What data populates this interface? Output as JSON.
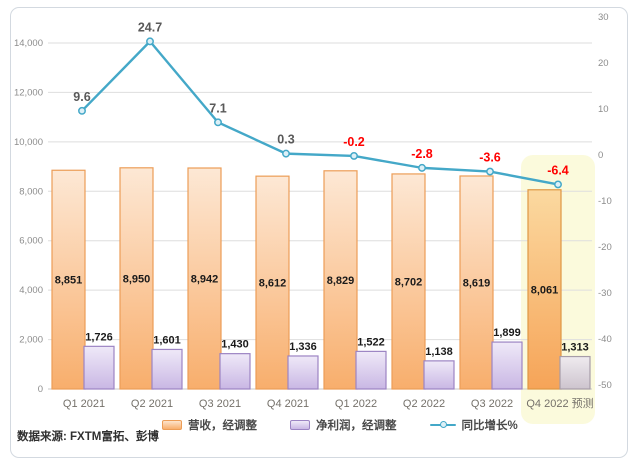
{
  "chart_data": {
    "type": "combo-bar-line",
    "categories": [
      "Q1 2021",
      "Q2 2021",
      "Q3 2021",
      "Q4 2021",
      "Q1 2022",
      "Q2 2022",
      "Q3 2022",
      "Q4 2022 预测"
    ],
    "forecast_index": 7,
    "series": [
      {
        "name": "营收，经调整",
        "type": "bar",
        "axis": "left",
        "values": [
          8851,
          8950,
          8942,
          8612,
          8829,
          8702,
          8619,
          8061
        ],
        "labels": [
          "8,851",
          "8,950",
          "8,942",
          "8,612",
          "8,829",
          "8,702",
          "8,619",
          "8,061"
        ]
      },
      {
        "name": "净利润，经调整",
        "type": "bar",
        "axis": "left",
        "values": [
          1726,
          1601,
          1430,
          1336,
          1522,
          1138,
          1899,
          1313
        ],
        "labels": [
          "1,726",
          "1,601",
          "1,430",
          "1,336",
          "1,522",
          "1,138",
          "1,899",
          "1,313"
        ]
      },
      {
        "name": "同比增长%",
        "type": "line",
        "axis": "right",
        "values": [
          9.6,
          24.7,
          7.1,
          0.3,
          -0.2,
          -2.8,
          -3.6,
          -6.4
        ],
        "labels": [
          "9.6",
          "24.7",
          "7.1",
          "0.3",
          "-0.2",
          "-2.8",
          "-3.6",
          "-6.4"
        ]
      }
    ],
    "left_axis": {
      "min": 0,
      "max": 14000,
      "step": 2000,
      "ticks": [
        "0",
        "2,000",
        "4,000",
        "6,000",
        "8,000",
        "10,000",
        "12,000",
        "14,000"
      ]
    },
    "right_axis": {
      "min": -50,
      "max": 30,
      "step": 10,
      "ticks": [
        "-50",
        "-40",
        "-30",
        "-20",
        "-10",
        "0",
        "10",
        "20",
        "30"
      ]
    },
    "grid": true,
    "legend_position": "bottom",
    "colors": {
      "revenue_fill_top": "#FDE8D5",
      "revenue_fill_bottom": "#F8AE6C",
      "revenue_border": "#EC9D57",
      "revenue_forecast_fill_top": "#FBD9A0",
      "revenue_forecast_fill_bottom": "#F6A458",
      "revenue_forecast_border": "#DF9743",
      "profit_fill_top": "#EFE9F8",
      "profit_fill_bottom": "#C9B7E4",
      "profit_border": "#9C84C3",
      "profit_forecast_fill_top": "#EFEBEF",
      "profit_forecast_fill_bottom": "#CDC4CE",
      "profit_forecast_border": "#A69CA8",
      "line": "#44A8C8",
      "line_marker_fill": "#DDF0F7",
      "label_positive": "#595959",
      "label_negative": "#FF0000",
      "forecast_highlight": "#FBFADC",
      "gridline": "#DEDEDE",
      "baseline": "#C9C9C9",
      "axis_text": "#8C8C8C",
      "category_text": "#75716A",
      "bar_label": "#1A1A1A"
    }
  },
  "legend": {
    "items": [
      {
        "label": "营收，经调整"
      },
      {
        "label": "净利润，经调整"
      },
      {
        "label": "同比增长%"
      }
    ]
  },
  "source_note": "数据来源: FXTM富拓、彭博"
}
